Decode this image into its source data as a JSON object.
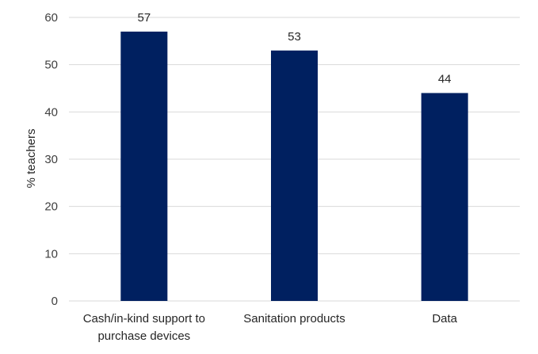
{
  "chart_data": {
    "type": "bar",
    "title": "",
    "xlabel": "",
    "ylabel": "% teachers",
    "categories": [
      [
        "Cash/in-kind support to",
        "purchase devices"
      ],
      [
        "Sanitation products"
      ],
      [
        "Data"
      ]
    ],
    "values": [
      57,
      53,
      44
    ],
    "data_labels": [
      "57",
      "53",
      "44"
    ],
    "ylim": [
      0,
      60
    ],
    "yticks": [
      0,
      10,
      20,
      30,
      40,
      50,
      60
    ],
    "grid": true,
    "legend": "none",
    "bar_color": "#002060",
    "grid_color": "#d9d9d9"
  }
}
